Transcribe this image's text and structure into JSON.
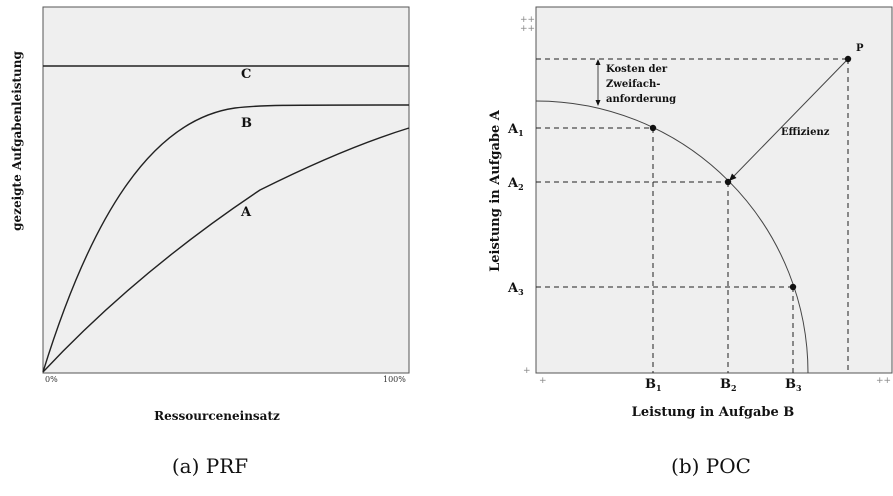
{
  "figure": {
    "panel_a": {
      "caption": "(a) PRF",
      "ylabel": "gezeigte Aufgabenleistung",
      "xlabel": "Ressourceneinsatz",
      "x_tick_start": "0%",
      "x_tick_end": "100%",
      "curves": [
        {
          "name": "C"
        },
        {
          "name": "B"
        },
        {
          "name": "A"
        }
      ]
    },
    "panel_b": {
      "caption": "(b) POC",
      "ylabel": "Leistung in Aufgabe A",
      "xlabel": "Leistung in Aufgabe B",
      "plus_y_top": "++",
      "plus_y_bottom": "+",
      "plus_x_left": "+",
      "plus_x_right": "++",
      "cost_label_line1": "Kosten der",
      "cost_label_line2": "Zweifach-",
      "cost_label_line3": "anforderung",
      "efficiency_label": "Effizienz",
      "point_p": "P",
      "a_labels": [
        {
          "main": "A",
          "sub": "1"
        },
        {
          "main": "A",
          "sub": "2"
        },
        {
          "main": "A",
          "sub": "3"
        }
      ],
      "b_labels": [
        {
          "main": "B",
          "sub": "1"
        },
        {
          "main": "B",
          "sub": "2"
        },
        {
          "main": "B",
          "sub": "3"
        }
      ]
    }
  }
}
